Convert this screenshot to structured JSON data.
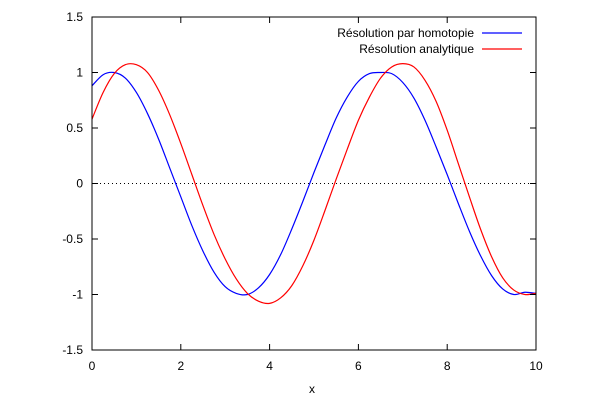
{
  "chart_data": {
    "type": "line",
    "title": "",
    "xlabel": "x",
    "ylabel": "",
    "xlim": [
      0,
      10
    ],
    "ylim": [
      -1.5,
      1.5
    ],
    "xticks": [
      0,
      2,
      4,
      6,
      8,
      10
    ],
    "xtick_labels": [
      "0",
      "2",
      "4",
      "6",
      "8",
      "10"
    ],
    "yticks": [
      -1.5,
      -1,
      -0.5,
      0,
      0.5,
      1,
      1.5
    ],
    "ytick_labels": [
      "-1.5",
      "-1",
      "-0.5",
      "0",
      "0.5",
      "1",
      "1.5"
    ],
    "grid": false,
    "zero_line": {
      "y": 0,
      "style": "dotted"
    },
    "legend": {
      "position": "top-right"
    },
    "series": [
      {
        "name": "Résolution par homotopie",
        "color": "#0000ff",
        "x": [
          0,
          0.25,
          0.5,
          0.75,
          1.0,
          1.25,
          1.5,
          1.75,
          2.0,
          2.25,
          2.5,
          2.75,
          3.0,
          3.25,
          3.5,
          3.75,
          4.0,
          4.25,
          4.5,
          4.75,
          5.0,
          5.25,
          5.5,
          5.75,
          6.0,
          6.25,
          6.5,
          6.75,
          7.0,
          7.25,
          7.5,
          7.75,
          8.0,
          8.25,
          8.5,
          8.75,
          9.0,
          9.25,
          9.5,
          9.75,
          10.0
        ],
        "y": [
          0.88,
          0.98,
          1.0,
          0.95,
          0.82,
          0.63,
          0.4,
          0.14,
          -0.12,
          -0.38,
          -0.61,
          -0.8,
          -0.93,
          -0.99,
          -1.0,
          -0.94,
          -0.82,
          -0.64,
          -0.41,
          -0.16,
          0.1,
          0.35,
          0.59,
          0.78,
          0.92,
          0.99,
          1.0,
          0.99,
          0.91,
          0.77,
          0.57,
          0.33,
          0.08,
          -0.18,
          -0.43,
          -0.65,
          -0.83,
          -0.95,
          -1.0,
          -0.98,
          -0.99
        ]
      },
      {
        "name": "Résolution analytique",
        "color": "#ff0000",
        "x": [
          0,
          0.25,
          0.5,
          0.75,
          1.0,
          1.25,
          1.5,
          1.75,
          2.0,
          2.25,
          2.5,
          2.75,
          3.0,
          3.25,
          3.5,
          3.75,
          4.0,
          4.25,
          4.5,
          4.75,
          5.0,
          5.25,
          5.5,
          5.75,
          6.0,
          6.25,
          6.5,
          6.75,
          7.0,
          7.25,
          7.5,
          7.75,
          8.0,
          8.25,
          8.5,
          8.75,
          9.0,
          9.25,
          9.5,
          9.75,
          10.0
        ],
        "y": [
          0.58,
          0.82,
          0.99,
          1.07,
          1.07,
          1.0,
          0.84,
          0.62,
          0.36,
          0.08,
          -0.2,
          -0.46,
          -0.68,
          -0.86,
          -0.99,
          -1.06,
          -1.08,
          -1.03,
          -0.92,
          -0.74,
          -0.51,
          -0.24,
          0.04,
          0.31,
          0.57,
          0.78,
          0.95,
          1.05,
          1.08,
          1.05,
          0.93,
          0.74,
          0.48,
          0.18,
          -0.12,
          -0.41,
          -0.66,
          -0.85,
          -0.96,
          -1.0,
          -0.99
        ]
      }
    ]
  }
}
